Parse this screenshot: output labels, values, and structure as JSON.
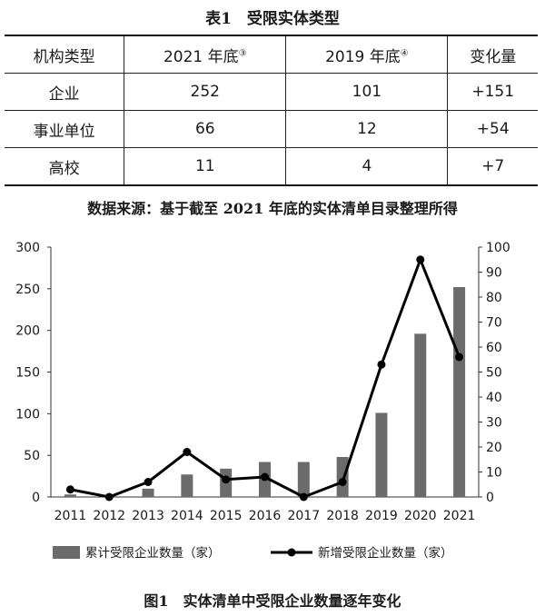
{
  "table": {
    "title": "表1　受限实体类型",
    "headers": [
      {
        "text": "机构类型",
        "note": ""
      },
      {
        "text": "2021 年底",
        "note": "③"
      },
      {
        "text": "2019 年底",
        "note": "④"
      },
      {
        "text": "变化量",
        "note": ""
      }
    ],
    "rows": [
      [
        "企业",
        "252",
        "101",
        "+151"
      ],
      [
        "事业单位",
        "66",
        "12",
        "+54"
      ],
      [
        "高校",
        "11",
        "4",
        "+7"
      ]
    ]
  },
  "source_note": "数据来源：基于截至 2021 年底的实体清单目录整理所得",
  "figure_caption": "图1　实体清单中受限企业数量逐年变化",
  "chart_data": {
    "type": "bar",
    "categories": [
      "2011",
      "2012",
      "2013",
      "2014",
      "2015",
      "2016",
      "2017",
      "2018",
      "2019",
      "2020",
      "2021"
    ],
    "series": [
      {
        "name": "累计受限企业数量（家）",
        "type": "bar",
        "axis": "left",
        "values": [
          3,
          0,
          10,
          27,
          34,
          42,
          42,
          48,
          101,
          196,
          252
        ]
      },
      {
        "name": "新增受限企业数量（家）",
        "type": "line",
        "axis": "right",
        "values": [
          3,
          0,
          6,
          18,
          7,
          8,
          0,
          6,
          53,
          95,
          56
        ]
      }
    ],
    "ylim_left": [
      0,
      300
    ],
    "yticks_left": [
      0,
      50,
      100,
      150,
      200,
      250,
      300
    ],
    "ylim_right": [
      0,
      100
    ],
    "yticks_right": [
      0,
      10,
      20,
      30,
      40,
      50,
      60,
      70,
      80,
      90,
      100
    ],
    "grid": false,
    "legend_position": "bottom",
    "colors": {
      "bar": "#6b6b6b",
      "line": "#000000",
      "axis": "#333333"
    }
  }
}
